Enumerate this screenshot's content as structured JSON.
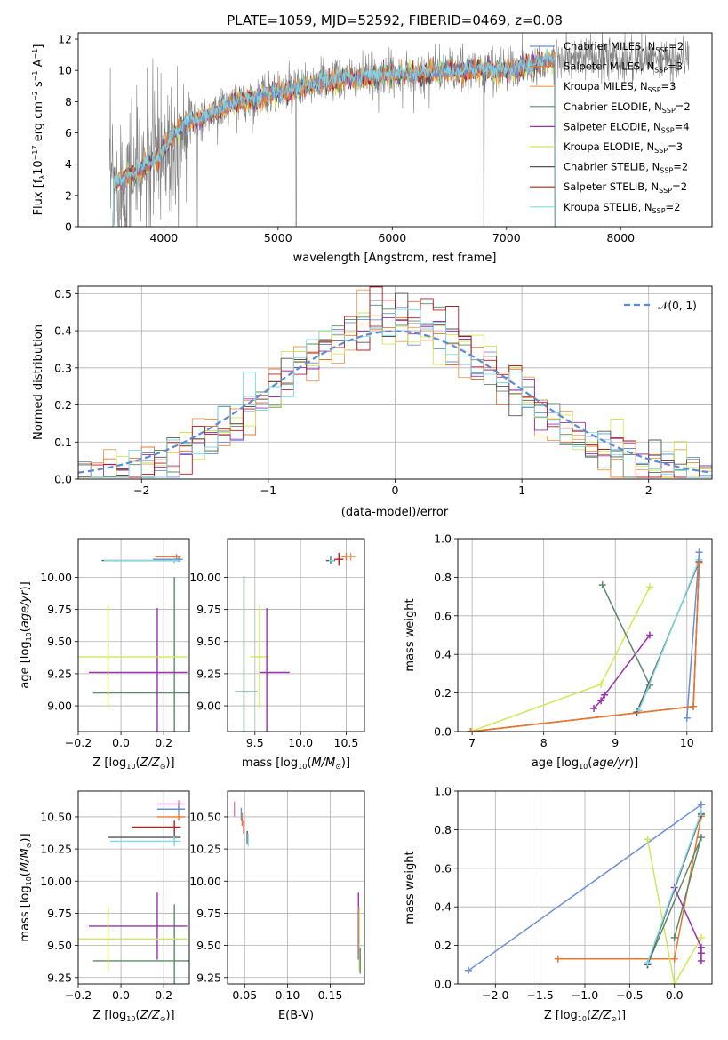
{
  "figure_title": "PLATE=1059, MJD=52592, FIBERID=0469, z=0.08",
  "colors": {
    "chabrier_miles": "#6a8fd8",
    "salpeter_miles": "#e87830",
    "kroupa_miles": "#ef9a55",
    "chabrier_elodie": "#5c8a68",
    "salpeter_elodie": "#9b30b0",
    "kroupa_elodie": "#cfe85a",
    "chabrier_stelib": "#555555",
    "salpeter_stelib": "#b51c1c",
    "kroupa_stelib": "#7fd8e6",
    "data": "#808080",
    "normal": "#5b8bd6"
  },
  "legend_spectrum": [
    {
      "label": "Chabrier MILES, N",
      "sub": "SSP",
      "tail": "=2",
      "color": "#6a8fd8"
    },
    {
      "label": "Salpeter MILES, N",
      "sub": "SSP",
      "tail": "=3",
      "color": "#e87830"
    },
    {
      "label": "Kroupa MILES, N",
      "sub": "SSP",
      "tail": "=3",
      "color": "#ef9a55"
    },
    {
      "label": "Chabrier ELODIE, N",
      "sub": "SSP",
      "tail": "=2",
      "color": "#5c8a68"
    },
    {
      "label": "Salpeter ELODIE, N",
      "sub": "SSP",
      "tail": "=4",
      "color": "#9b30b0"
    },
    {
      "label": "Kroupa ELODIE, N",
      "sub": "SSP",
      "tail": "=3",
      "color": "#cfe85a"
    },
    {
      "label": "Chabrier STELIB, N",
      "sub": "SSP",
      "tail": "=2",
      "color": "#555555"
    },
    {
      "label": "Salpeter STELIB, N",
      "sub": "SSP",
      "tail": "=2",
      "color": "#b51c1c"
    },
    {
      "label": "Kroupa STELIB, N",
      "sub": "SSP",
      "tail": "=2",
      "color": "#7fd8e6"
    }
  ],
  "legend_hist": {
    "label": "𝒩(0, 1)"
  },
  "chart_data": [
    {
      "id": "spectrum",
      "type": "line",
      "xlabel": "wavelength [Angstrom, rest frame]",
      "ylabel": "Flux [f",
      "xlim": [
        3250,
        8800
      ],
      "ylim": [
        0,
        12.4
      ],
      "xticks": [
        4000,
        5000,
        6000,
        7000,
        8000
      ],
      "yticks": [
        0,
        2,
        4,
        6,
        8,
        10,
        12
      ],
      "model_x": [
        3530,
        3650,
        3750,
        3850,
        3950,
        4050,
        4150,
        4250,
        4350,
        4500,
        4650,
        4800,
        4950,
        5100,
        5250,
        5400,
        5550,
        5700,
        5850,
        6000,
        6150,
        6300,
        6450,
        6600,
        6750,
        6900,
        7050,
        7200,
        7350,
        7450
      ],
      "model_y": [
        2.8,
        3.0,
        3.5,
        4.0,
        4.4,
        5.6,
        6.4,
        6.8,
        7.0,
        7.5,
        8.0,
        8.2,
        8.6,
        8.7,
        9.0,
        9.3,
        9.4,
        9.5,
        9.6,
        9.8,
        9.7,
        9.8,
        10.0,
        9.9,
        10.1,
        10.0,
        10.1,
        10.3,
        10.6,
        10.7
      ]
    },
    {
      "id": "residual_hist",
      "type": "bar",
      "xlabel": "(data-model)/error",
      "ylabel": "Normed distribution",
      "xlim": [
        -2.5,
        2.5
      ],
      "ylim": [
        0,
        0.52
      ],
      "xticks": [
        -2,
        -1,
        0,
        1,
        2
      ],
      "yticks": [
        0.0,
        0.1,
        0.2,
        0.3,
        0.4,
        0.5
      ],
      "bin_width": 0.1
    },
    {
      "id": "age_vs_Z",
      "type": "scatter",
      "xlabel": "Z [log",
      "ylabel": "age  [log",
      "xlim": [
        -0.2,
        0.32
      ],
      "ylim": [
        8.8,
        10.3
      ],
      "xticks": [
        -0.2,
        0.0,
        0.2
      ],
      "yticks": [
        9.0,
        9.25,
        9.5,
        9.75,
        10.0
      ],
      "points": [
        {
          "x": 0.26,
          "y": 10.16,
          "xerr": [
            0.1,
            0.02
          ],
          "yerr": 0.02,
          "color": "#e87830"
        },
        {
          "x": 0.27,
          "y": 10.14,
          "xerr": [
            0.12,
            0.02
          ],
          "yerr": 0.02,
          "color": "#6a8fd8"
        },
        {
          "x": 0.25,
          "y": 10.13,
          "xerr": [
            0.34,
            0.03
          ],
          "yerr": 0.02,
          "color": "#555555"
        },
        {
          "x": 0.25,
          "y": 10.13,
          "xerr": [
            0.33,
            0.03
          ],
          "yerr": 0.02,
          "color": "#7fd8e6"
        },
        {
          "x": 0.25,
          "y": 9.1,
          "xerr": [
            0.38,
            0.07
          ],
          "yerr": 0.9,
          "color": "#5c8a68"
        },
        {
          "x": 0.17,
          "y": 9.26,
          "xerr": [
            0.32,
            0.14
          ],
          "yerr": 0.5,
          "color": "#9b30b0"
        },
        {
          "x": -0.06,
          "y": 9.38,
          "xerr": [
            0.23,
            0.37
          ],
          "yerr": 0.4,
          "color": "#cfe85a"
        }
      ]
    },
    {
      "id": "age_vs_mass",
      "type": "scatter",
      "xlabel": "mass [log",
      "ylabel": "",
      "xlim": [
        9.2,
        10.7
      ],
      "ylim": [
        8.8,
        10.3
      ],
      "xticks": [
        9.5,
        10.0,
        10.5
      ],
      "yticks": [
        9.0,
        9.25,
        9.5,
        9.75,
        10.0
      ],
      "points": [
        {
          "x": 10.33,
          "y": 10.13,
          "xerr": [
            0.05,
            0.05
          ],
          "yerr": 0.03,
          "color": "#555555"
        },
        {
          "x": 10.34,
          "y": 10.13,
          "xerr": [
            0.03,
            0.03
          ],
          "yerr": 0.03,
          "color": "#7fd8e6"
        },
        {
          "x": 10.42,
          "y": 10.14,
          "xerr": [
            0.05,
            0.05
          ],
          "yerr": 0.05,
          "color": "#b51c1c"
        },
        {
          "x": 10.5,
          "y": 10.16,
          "xerr": [
            0.05,
            0.05
          ],
          "yerr": 0.03,
          "color": "#e87830"
        },
        {
          "x": 10.55,
          "y": 10.16,
          "xerr": [
            0.05,
            0.05
          ],
          "yerr": 0.03,
          "color": "#ef9a55"
        },
        {
          "x": 9.38,
          "y": 9.11,
          "xerr": [
            0.1,
            0.15
          ],
          "yerr": 0.9,
          "color": "#5c8a68"
        },
        {
          "x": 9.55,
          "y": 9.38,
          "xerr": [
            0.1,
            0.1
          ],
          "yerr": 0.4,
          "color": "#cfe85a"
        },
        {
          "x": 9.63,
          "y": 9.26,
          "xerr": [
            0.08,
            0.25
          ],
          "yerr": 0.5,
          "color": "#9b30b0"
        }
      ]
    },
    {
      "id": "weight_vs_age",
      "type": "line",
      "xlabel": "age  [log",
      "ylabel": "mass weight",
      "xlim": [
        6.8,
        10.35
      ],
      "ylim": [
        0,
        1.0
      ],
      "xticks": [
        7,
        8,
        9,
        10
      ],
      "yticks": [
        0.0,
        0.2,
        0.4,
        0.6,
        0.8,
        1.0
      ],
      "series": [
        {
          "color": "#cfe85a",
          "x": [
            6.98,
            8.8,
            9.48
          ],
          "y": [
            0.0,
            0.245,
            0.75
          ]
        },
        {
          "color": "#9b30b0",
          "x": [
            8.7,
            8.8,
            8.85,
            9.48
          ],
          "y": [
            0.12,
            0.16,
            0.19,
            0.5
          ]
        },
        {
          "color": "#5c8a68",
          "x": [
            8.82,
            9.48,
            9.3
          ],
          "y": [
            0.76,
            0.24,
            0.1
          ]
        },
        {
          "color": "#555555",
          "x": [
            9.3,
            10.17
          ],
          "y": [
            0.1,
            0.88
          ]
        },
        {
          "color": "#7fd8e6",
          "x": [
            9.33,
            10.17
          ],
          "y": [
            0.11,
            0.89
          ]
        },
        {
          "color": "#6a8fd8",
          "x": [
            10.0,
            10.17
          ],
          "y": [
            0.07,
            0.93
          ]
        },
        {
          "color": "#b51c1c",
          "x": [
            6.98,
            10.09,
            10.17
          ],
          "y": [
            0.0,
            0.13,
            0.87
          ]
        },
        {
          "color": "#e87830",
          "x": [
            6.98,
            10.09,
            10.17
          ],
          "y": [
            0.0,
            0.13,
            0.87
          ]
        }
      ]
    },
    {
      "id": "mass_vs_Z",
      "type": "scatter",
      "xlabel": "Z [log",
      "ylabel": "mass [log",
      "xlim": [
        -0.2,
        0.32
      ],
      "ylim": [
        9.2,
        10.7
      ],
      "xticks": [
        -0.2,
        0.0,
        0.2
      ],
      "yticks": [
        9.25,
        9.5,
        9.75,
        10.0,
        10.25,
        10.5
      ],
      "points": [
        {
          "x": 0.27,
          "y": 10.6,
          "xerr": [
            0.1,
            0.03
          ],
          "yerr": 0.03,
          "color": "#e07ac8"
        },
        {
          "x": 0.27,
          "y": 10.56,
          "xerr": [
            0.1,
            0.03
          ],
          "yerr": 0.03,
          "color": "#6a8fd8"
        },
        {
          "x": 0.27,
          "y": 10.5,
          "xerr": [
            0.1,
            0.03
          ],
          "yerr": 0.03,
          "color": "#e87830"
        },
        {
          "x": 0.25,
          "y": 10.42,
          "xerr": [
            0.2,
            0.03
          ],
          "yerr": 0.05,
          "color": "#b51c1c"
        },
        {
          "x": 0.25,
          "y": 10.34,
          "xerr": [
            0.31,
            0.03
          ],
          "yerr": 0.04,
          "color": "#555555"
        },
        {
          "x": 0.25,
          "y": 10.31,
          "xerr": [
            0.3,
            0.03
          ],
          "yerr": 0.04,
          "color": "#7fd8e6"
        },
        {
          "x": 0.25,
          "y": 9.38,
          "xerr": [
            0.38,
            0.07
          ],
          "yerr": 0.44,
          "color": "#5c8a68"
        },
        {
          "x": 0.17,
          "y": 9.65,
          "xerr": [
            0.32,
            0.14
          ],
          "yerr": 0.26,
          "color": "#9b30b0"
        },
        {
          "x": -0.06,
          "y": 9.55,
          "xerr": [
            0.23,
            0.37
          ],
          "yerr": 0.25,
          "color": "#cfe85a"
        }
      ]
    },
    {
      "id": "mass_vs_EBV",
      "type": "scatter",
      "xlabel": "E(B-V)",
      "ylabel": "",
      "xlim": [
        0.03,
        0.19
      ],
      "ylim": [
        9.2,
        10.7
      ],
      "xticks": [
        0.05,
        0.1,
        0.15
      ],
      "yticks": [
        9.25,
        9.5,
        9.75,
        10.0,
        10.25,
        10.5
      ],
      "points": [
        {
          "x": 0.038,
          "y": 10.56,
          "xerr": [
            0,
            0
          ],
          "yerr": 0.06,
          "color": "#e07ac8"
        },
        {
          "x": 0.046,
          "y": 10.52,
          "xerr": [
            0,
            0
          ],
          "yerr": 0.05,
          "color": "#6a8fd8"
        },
        {
          "x": 0.047,
          "y": 10.48,
          "xerr": [
            0,
            0
          ],
          "yerr": 0.05,
          "color": "#e87830"
        },
        {
          "x": 0.049,
          "y": 10.42,
          "xerr": [
            0,
            0
          ],
          "yerr": 0.05,
          "color": "#b51c1c"
        },
        {
          "x": 0.053,
          "y": 10.34,
          "xerr": [
            0,
            0
          ],
          "yerr": 0.05,
          "color": "#555555"
        },
        {
          "x": 0.054,
          "y": 10.32,
          "xerr": [
            0,
            0
          ],
          "yerr": 0.05,
          "color": "#7fd8e6"
        },
        {
          "x": 0.183,
          "y": 9.65,
          "xerr": [
            0,
            0
          ],
          "yerr": 0.26,
          "color": "#9b30b0"
        },
        {
          "x": 0.184,
          "y": 9.55,
          "xerr": [
            0,
            0
          ],
          "yerr": 0.25,
          "color": "#cfe85a"
        },
        {
          "x": 0.185,
          "y": 9.38,
          "xerr": [
            0,
            0
          ],
          "yerr": 0.1,
          "color": "#5c8a68"
        }
      ]
    },
    {
      "id": "weight_vs_Z",
      "type": "line",
      "xlabel": "Z [log",
      "ylabel": "mass weight",
      "xlim": [
        -2.42,
        0.42
      ],
      "ylim": [
        0,
        1.0
      ],
      "xticks": [
        -2.0,
        -1.5,
        -1.0,
        -0.5,
        0.0
      ],
      "yticks": [
        0.0,
        0.2,
        0.4,
        0.6,
        0.8,
        1.0
      ],
      "series": [
        {
          "color": "#6a8fd8",
          "x": [
            -2.3,
            0.3
          ],
          "y": [
            0.07,
            0.93
          ]
        },
        {
          "color": "#e87830",
          "x": [
            -1.3,
            0.0,
            0.3
          ],
          "y": [
            0.13,
            0.13,
            0.87
          ]
        },
        {
          "color": "#cfe85a",
          "x": [
            -0.3,
            0.0,
            0.3
          ],
          "y": [
            0.75,
            0.0,
            0.24
          ]
        },
        {
          "color": "#9b30b0",
          "x": [
            0.0,
            0.3,
            0.3,
            0.3
          ],
          "y": [
            0.5,
            0.19,
            0.16,
            0.12
          ]
        },
        {
          "color": "#5c8a68",
          "x": [
            0.0,
            0.3,
            -0.3
          ],
          "y": [
            0.24,
            0.76,
            0.1
          ]
        },
        {
          "color": "#555555",
          "x": [
            -0.3,
            0.3
          ],
          "y": [
            0.1,
            0.88
          ]
        },
        {
          "color": "#7fd8e6",
          "x": [
            -0.3,
            0.3
          ],
          "y": [
            0.11,
            0.89
          ]
        }
      ]
    }
  ]
}
